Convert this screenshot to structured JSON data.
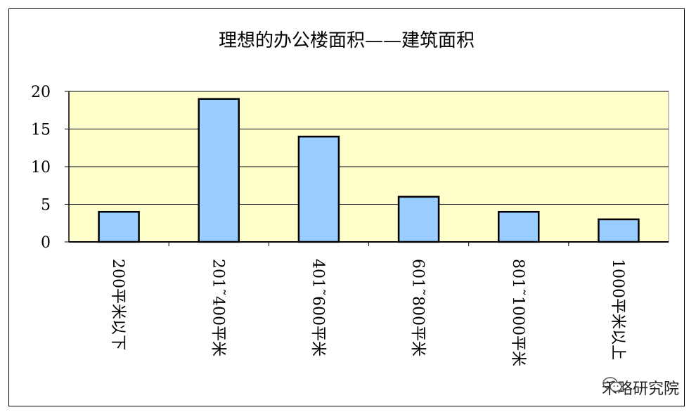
{
  "chart_data": {
    "type": "bar",
    "title": "理想的办公楼面积——建筑面积",
    "categories": [
      "200平米以下",
      "201˜400平米",
      "401˜600平米",
      "601˜800平米",
      "801˜1000平米",
      "1000平米以上"
    ],
    "values": [
      4,
      19,
      14,
      6,
      4,
      3
    ],
    "ylim": [
      0,
      20
    ],
    "yticks": [
      0,
      5,
      10,
      15,
      20
    ],
    "grid": true,
    "legend": "none",
    "colors": {
      "plot_background": "#FFFFCC",
      "bar_fill": "#99CCFF",
      "bar_stroke": "#000000",
      "gridline": "#000000"
    }
  },
  "watermark": {
    "text": "禾略研究院",
    "icon": "wechat-icon"
  }
}
